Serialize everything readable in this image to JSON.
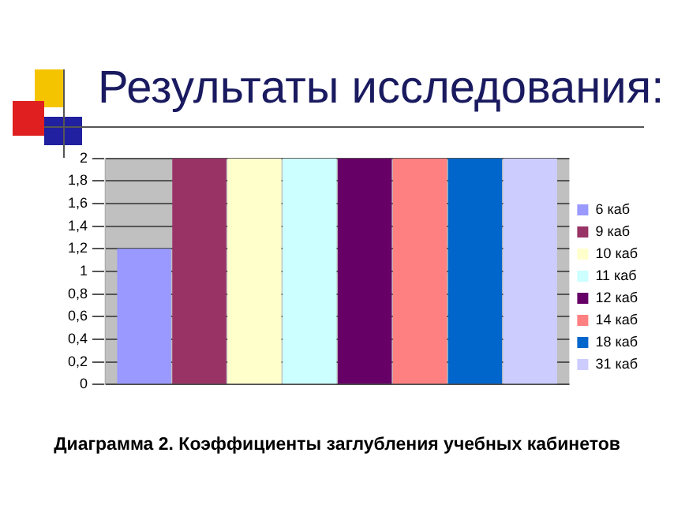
{
  "chart_data": {
    "type": "bar",
    "title": "Результаты исследования:",
    "categories": [
      null
    ],
    "series": [
      {
        "name": "6 каб",
        "color": "#9999ff",
        "values": [
          1.2
        ]
      },
      {
        "name": "9 каб",
        "color": "#993366",
        "values": [
          2
        ]
      },
      {
        "name": "10 каб",
        "color": "#ffffcc",
        "values": [
          2
        ]
      },
      {
        "name": "11 каб",
        "color": "#ccffff",
        "values": [
          2
        ]
      },
      {
        "name": "12 каб",
        "color": "#660066",
        "values": [
          2
        ]
      },
      {
        "name": "14 каб",
        "color": "#ff8080",
        "values": [
          2
        ]
      },
      {
        "name": "18 каб",
        "color": "#0066cc",
        "values": [
          2
        ]
      },
      {
        "name": "31 каб",
        "color": "#ccccff",
        "values": [
          2
        ]
      }
    ],
    "ylim": [
      0,
      2
    ],
    "yticks": [
      0,
      {
        "value": 0.2,
        "label": "0,2"
      },
      {
        "value": 0.4,
        "label": "0,4"
      },
      {
        "value": 0.6,
        "label": "0,6"
      },
      {
        "value": 0.8,
        "label": "0,8"
      },
      1,
      {
        "value": 1.2,
        "label": "1,2"
      },
      {
        "value": 1.4,
        "label": "1,4"
      },
      {
        "value": 1.6,
        "label": "1,6"
      },
      {
        "value": 1.8,
        "label": "1,8"
      },
      2
    ],
    "grid": "y",
    "legend": "right",
    "annotations": [
      "Диаграмма 2. Коэффициенты заглубления учебных кабинетов"
    ]
  }
}
